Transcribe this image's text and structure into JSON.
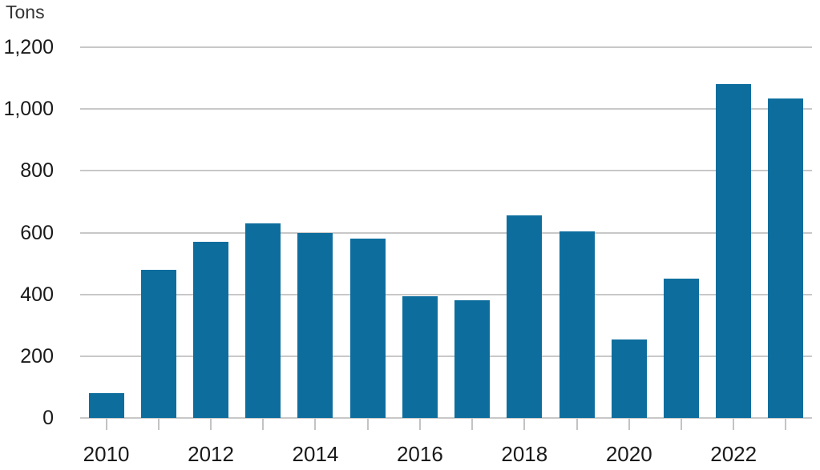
{
  "chart_data": {
    "type": "bar",
    "title": "",
    "ylabel": "Tons",
    "xlabel": "",
    "categories": [
      2010,
      2011,
      2012,
      2013,
      2014,
      2015,
      2016,
      2017,
      2018,
      2019,
      2020,
      2021,
      2022,
      2023
    ],
    "values": [
      80,
      480,
      570,
      630,
      600,
      580,
      395,
      380,
      655,
      605,
      255,
      450,
      1080,
      1035
    ],
    "ylim": [
      0,
      1200
    ],
    "yticks": [
      0,
      200,
      400,
      600,
      800,
      1000,
      1200
    ],
    "ytick_labels": [
      "0",
      "200",
      "400",
      "600",
      "800",
      "1,000",
      "1,200"
    ],
    "xtick_years": [
      2010,
      2012,
      2014,
      2016,
      2018,
      2020,
      2022
    ],
    "xtick_labels": [
      "2010",
      "2012",
      "2014",
      "2016",
      "2018",
      "2020",
      "2022"
    ],
    "grid": true,
    "legend": false,
    "bar_color": "#0d6e9e",
    "gridline_color": "#c8c8c8",
    "axis_line_color": "#c8c8c8",
    "tick_mark_color": "#c3c3c3",
    "text_color": "#1a1a1a"
  }
}
